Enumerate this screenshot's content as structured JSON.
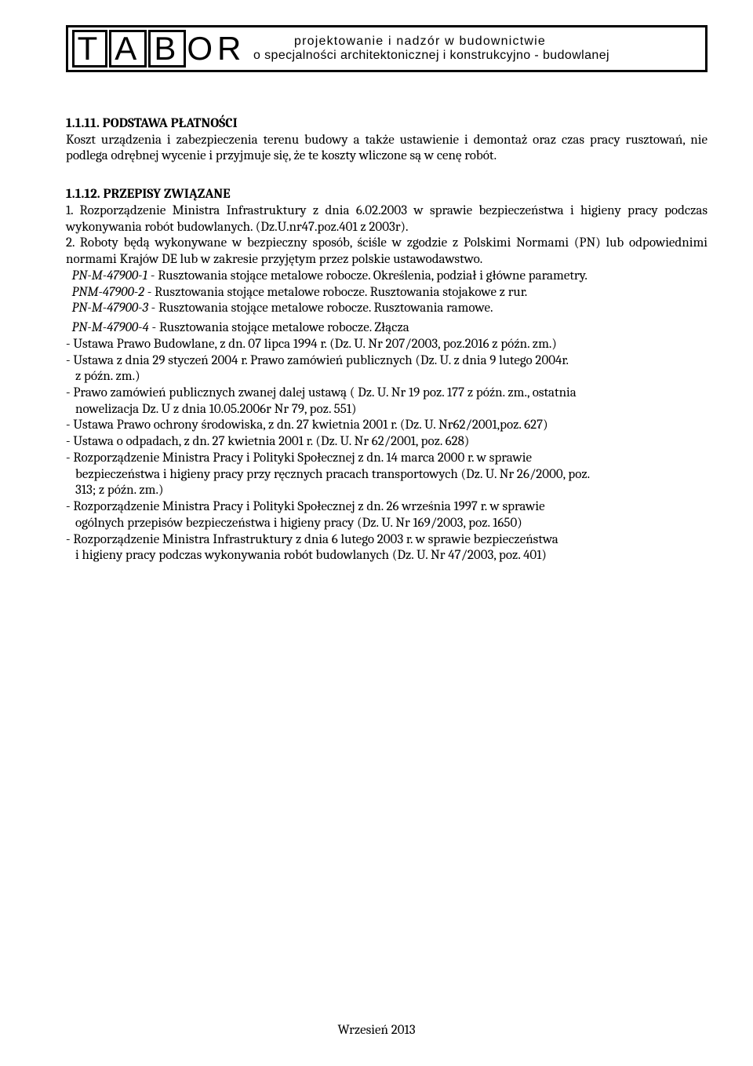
{
  "colors": {
    "text": "#000000",
    "background": "#ffffff",
    "border": "#000000"
  },
  "typography": {
    "body_font": "Cambria, Georgia, serif",
    "header_font": "Arial, sans-serif",
    "body_size_pt": 12,
    "line_height": 1.22
  },
  "header": {
    "logo_letters": [
      "T",
      "A",
      "B",
      "O",
      "R"
    ],
    "line1": "projektowanie i nadzór w budownictwie",
    "line2": "o specjalności architektonicznej i konstrukcyjno - budowlanej"
  },
  "sections": {
    "s1": {
      "title": "1.1.11. PODSTAWA PŁATNOŚCI",
      "body": "Koszt urządzenia i zabezpieczenia terenu budowy a także ustawienie i demontaż oraz czas pracy rusztowań, nie podlega odrębnej wycenie i przyjmuje się, że te koszty wliczone są w cenę robót."
    },
    "s2": {
      "title": "1.1.12. PRZEPISY ZWIĄZANE",
      "p1": "1. Rozporządzenie Ministra Infrastruktury z dnia 6.02.2003 w sprawie bezpieczeństwa i higieny pracy podczas wykonywania robót budowlanych. (Dz.U.nr47.poz.401 z 2003r).",
      "p2": "2. Roboty będą wykonywane w bezpieczny sposób, ściśle w zgodzie z Polskimi Normami (PN) lub odpowiednimi normami Krajów DE lub w zakresie przyjętym przez polskie ustawodawstwo.",
      "norms": [
        {
          "em": "PN-M-47900-1",
          "rest": " - Rusztowania stojące metalowe robocze. Określenia, podział i główne parametry."
        },
        {
          "em": "PNM-47900-2",
          "rest": " - Rusztowania stojące metalowe robocze. Rusztowania stojakowe z rur."
        },
        {
          "em": "PN-M-47900-3",
          "rest": " - Rusztowania stojące metalowe robocze. Rusztowania ramowe."
        },
        {
          "em": "PN-M-47900-4",
          "rest": " - Rusztowania stojące metalowe robocze. Złącza"
        }
      ],
      "list": [
        [
          "- Ustawa Prawo Budowlane, z dn. 07 lipca 1994 r. (Dz. U. Nr 207/2003, poz.2016 z późn. zm.)"
        ],
        [
          "- Ustawa z dnia 29 styczeń 2004 r. Prawo zamówień publicznych (Dz. U. z dnia 9 lutego 2004r.",
          "z późn. zm.)"
        ],
        [
          "- Prawo zamówień publicznych zwanej dalej ustawą ( Dz. U. Nr 19 poz. 177 z późn. zm., ostatnia",
          "nowelizacja Dz. U z dnia 10.05.2006r Nr 79, poz. 551)"
        ],
        [
          "- Ustawa Prawo ochrony środowiska, z dn. 27 kwietnia 2001 r. (Dz. U. Nr62/2001,poz. 627)"
        ],
        [
          "- Ustawa o odpadach, z dn. 27 kwietnia 2001 r. (Dz. U. Nr 62/2001, poz. 628)"
        ],
        [
          "- Rozporządzenie Ministra Pracy i Polityki Społecznej z dn. 14 marca 2000 r. w sprawie",
          "bezpieczeństwa i higieny pracy przy ręcznych pracach transportowych (Dz. U. Nr 26/2000, poz.",
          "313; z późn. zm.)"
        ],
        [
          "- Rozporządzenie Ministra Pracy i Polityki Społecznej z dn. 26 września 1997 r. w sprawie",
          "ogólnych przepisów bezpieczeństwa i higieny pracy (Dz. U. Nr 169/2003, poz. 1650)"
        ],
        [
          "- Rozporządzenie  Ministra  Infrastruktury  z dnia 6 lutego  2003 r. w sprawie bezpieczeństwa",
          "i higieny pracy podczas wykonywania robót budowlanych (Dz. U. Nr 47/2003, poz. 401)"
        ]
      ]
    }
  },
  "footer": "Wrzesień 2013"
}
